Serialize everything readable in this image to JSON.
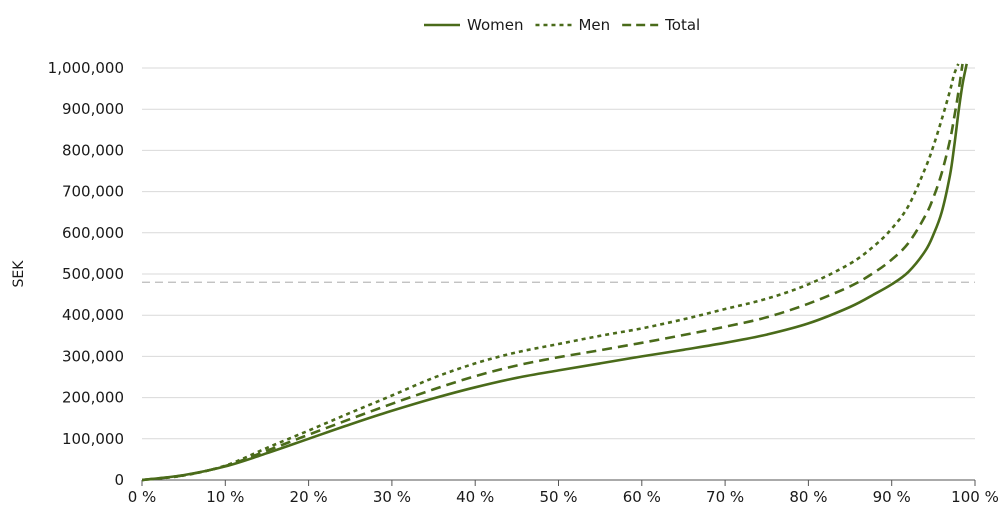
{
  "chart_data": {
    "type": "line",
    "title": "",
    "xlabel": "",
    "ylabel": "SEK",
    "xlim": [
      0,
      100
    ],
    "ylim": [
      0,
      1000000
    ],
    "x_ticks": [
      0,
      10,
      20,
      30,
      40,
      50,
      60,
      70,
      80,
      90,
      100
    ],
    "x_tick_labels": [
      "0 %",
      "10 %",
      "20 %",
      "30 %",
      "40 %",
      "50 %",
      "60 %",
      "70 %",
      "80 %",
      "90 %",
      "100 %"
    ],
    "y_ticks": [
      0,
      100000,
      200000,
      300000,
      400000,
      500000,
      600000,
      700000,
      800000,
      900000,
      1000000
    ],
    "y_tick_labels": [
      "0",
      "100,000",
      "200,000",
      "300,000",
      "400,000",
      "500,000",
      "600,000",
      "700,000",
      "800,000",
      "900,000",
      "1,000,000"
    ],
    "grid": "horizontal",
    "legend_position": "top-center",
    "reference_line": {
      "y": 480000,
      "style": "dashed",
      "color": "#bbbbbb"
    },
    "colors": {
      "line": "#4a6b1a",
      "grid": "#d9d9d9"
    },
    "series": [
      {
        "name": "Women",
        "style": "solid",
        "x": [
          0,
          5,
          10,
          15,
          20,
          25,
          30,
          35,
          40,
          45,
          50,
          55,
          60,
          65,
          70,
          75,
          80,
          85,
          88,
          90,
          92,
          94,
          95,
          96,
          97,
          97.5,
          98,
          98.5,
          99
        ],
        "y": [
          0,
          12000,
          33000,
          65000,
          100000,
          135000,
          168000,
          198000,
          225000,
          248000,
          266000,
          283000,
          300000,
          316000,
          333000,
          353000,
          380000,
          420000,
          452000,
          475000,
          505000,
          555000,
          595000,
          650000,
          740000,
          810000,
          890000,
          960000,
          1010000
        ]
      },
      {
        "name": "Men",
        "style": "dotted",
        "x": [
          0,
          5,
          10,
          15,
          20,
          25,
          30,
          35,
          40,
          45,
          50,
          55,
          60,
          65,
          70,
          75,
          80,
          85,
          88,
          90,
          92,
          94,
          95,
          96,
          97,
          97.5,
          98
        ],
        "y": [
          0,
          11000,
          35000,
          78000,
          120000,
          163000,
          205000,
          248000,
          283000,
          310000,
          330000,
          350000,
          368000,
          390000,
          415000,
          440000,
          475000,
          525000,
          570000,
          610000,
          665000,
          755000,
          810000,
          875000,
          945000,
          985000,
          1010000
        ]
      },
      {
        "name": "Total",
        "style": "dashed",
        "x": [
          0,
          5,
          10,
          15,
          20,
          25,
          30,
          35,
          40,
          45,
          50,
          55,
          60,
          65,
          70,
          75,
          80,
          85,
          88,
          90,
          92,
          94,
          95,
          96,
          97,
          97.5,
          98,
          98.5
        ],
        "y": [
          0,
          11500,
          34000,
          71000,
          110000,
          148000,
          185000,
          220000,
          252000,
          278000,
          298000,
          315000,
          333000,
          352000,
          372000,
          395000,
          428000,
          470000,
          505000,
          535000,
          575000,
          640000,
          685000,
          745000,
          825000,
          880000,
          940000,
          1010000
        ]
      }
    ]
  }
}
